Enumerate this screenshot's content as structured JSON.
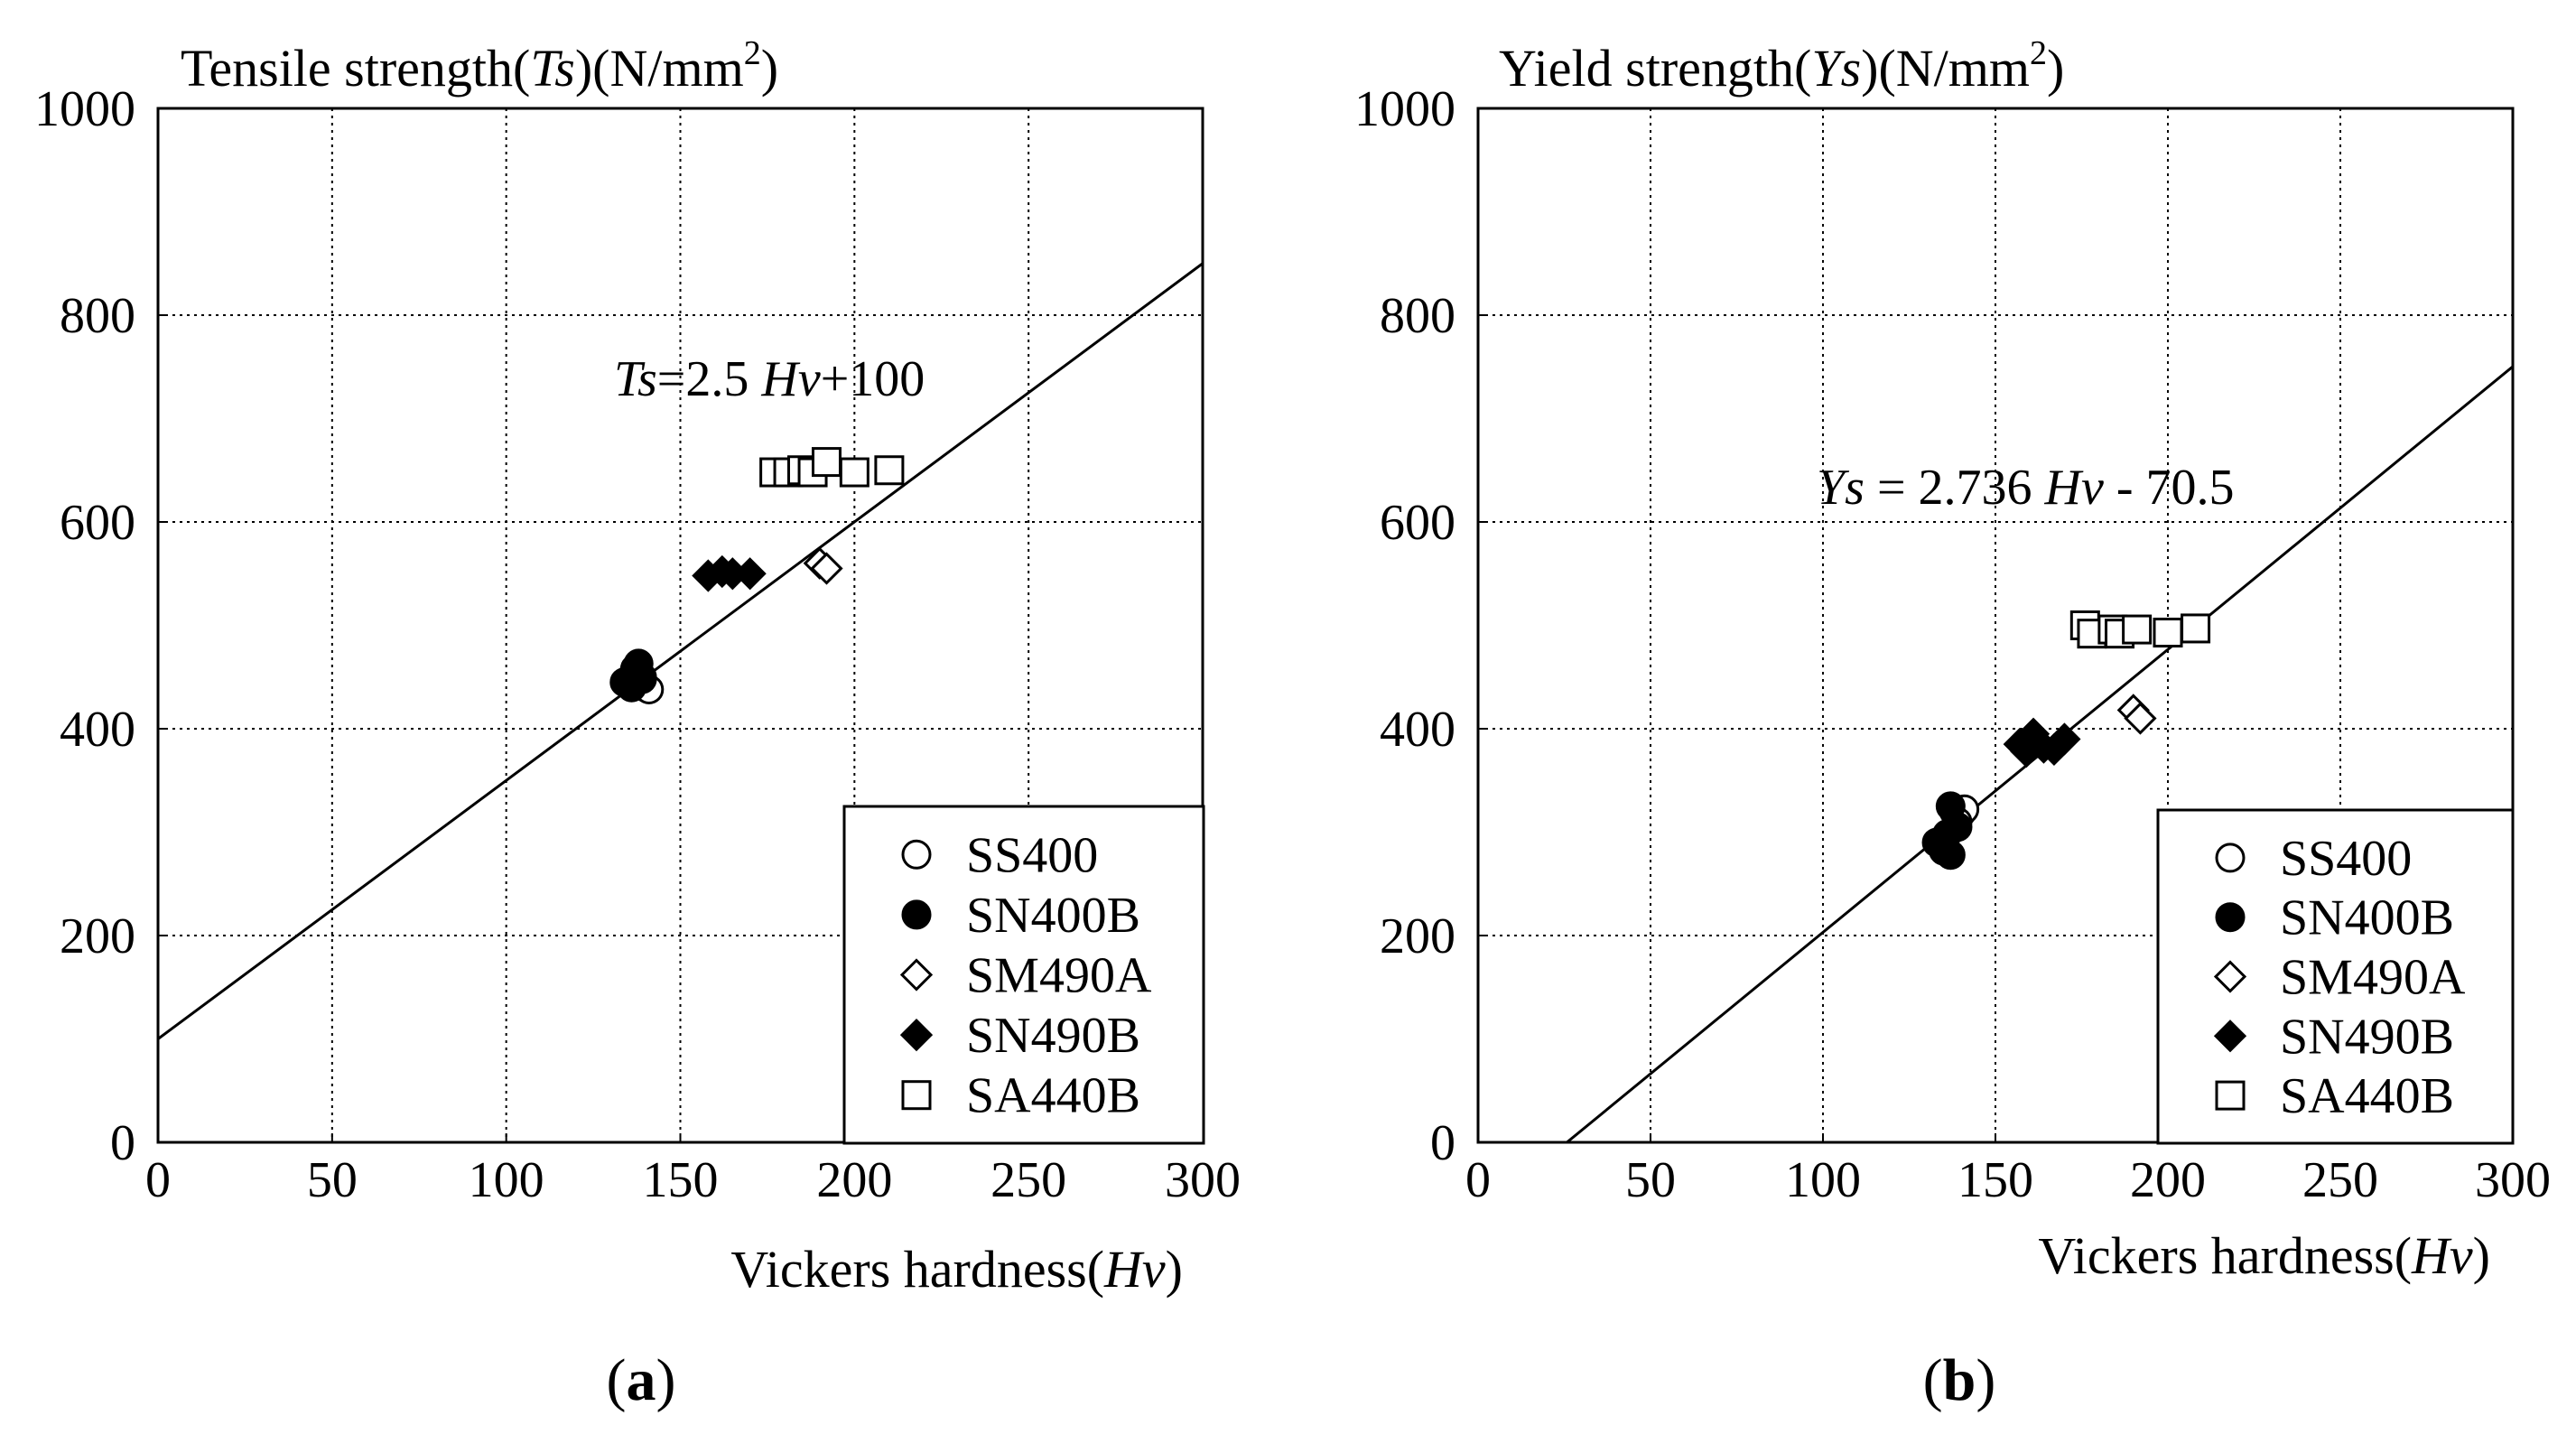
{
  "figure": {
    "panel_labels": [
      "(a)",
      "(b)"
    ]
  },
  "chart_data": [
    {
      "type": "scatter",
      "title": "Tensile strength(Ts)(N/mm2)",
      "title_parts": {
        "pre": "Tensile strength(",
        "var": "Ts",
        "post": ")(N/mm",
        "sup": "2",
        "end": ")"
      },
      "xlabel": "Vickers hardness(Hv)",
      "xlabel_parts": {
        "pre": "Vickers hardness(",
        "var": "Hv",
        "post": ")"
      },
      "ylabel": "",
      "xlim": [
        0,
        300
      ],
      "ylim": [
        0,
        1000
      ],
      "xticks": [
        0,
        50,
        100,
        150,
        200,
        250,
        300
      ],
      "yticks": [
        0,
        200,
        400,
        600,
        800,
        1000
      ],
      "ytick_labels": [
        "0",
        "200",
        "400",
        "600",
        "800",
        "1000"
      ],
      "grid": true,
      "legend_position": "bottom-right",
      "fit_line": {
        "slope": 2.5,
        "intercept": 100
      },
      "equation": "Ts=2.5 Hv+100",
      "equation_parts": [
        {
          "t": "Ts",
          "i": true
        },
        {
          "t": "=2.5 ",
          "i": false
        },
        {
          "t": "Hv",
          "i": true
        },
        {
          "t": "+100",
          "i": false
        }
      ],
      "series": [
        {
          "name": "SS400",
          "marker": "circle-open",
          "points": [
            [
              138,
              445
            ],
            [
              140,
              440
            ],
            [
              141,
              438
            ],
            [
              139,
              450
            ]
          ]
        },
        {
          "name": "SN400B",
          "marker": "circle-filled",
          "points": [
            [
              134,
              445
            ],
            [
              136,
              450
            ],
            [
              137,
              458
            ],
            [
              138,
              463
            ],
            [
              139,
              448
            ],
            [
              136,
              440
            ]
          ]
        },
        {
          "name": "SM490A",
          "marker": "diamond-open",
          "points": [
            [
              190,
              560
            ],
            [
              192,
              555
            ]
          ]
        },
        {
          "name": "SN490B",
          "marker": "diamond-filled",
          "points": [
            [
              158,
              548
            ],
            [
              162,
              552
            ],
            [
              165,
              550
            ],
            [
              170,
              550
            ]
          ]
        },
        {
          "name": "SA440B",
          "marker": "square-open",
          "points": [
            [
              177,
              648
            ],
            [
              181,
              648
            ],
            [
              185,
              650
            ],
            [
              188,
              648
            ],
            [
              192,
              658
            ],
            [
              200,
              648
            ],
            [
              210,
              650
            ]
          ]
        }
      ]
    },
    {
      "type": "scatter",
      "title": "Yield strength(Ys)(N/mm2)",
      "title_parts": {
        "pre": "Yield strength(",
        "var": "Ys",
        "post": ")(N/mm",
        "sup": "2",
        "end": ")"
      },
      "xlabel": "Vickers hardness(Hv)",
      "xlabel_parts": {
        "pre": "Vickers hardness(",
        "var": "Hv",
        "post": ")"
      },
      "ylabel": "",
      "xlim": [
        0,
        300
      ],
      "ylim": [
        0,
        1000
      ],
      "xticks": [
        0,
        50,
        100,
        150,
        200,
        250,
        300
      ],
      "yticks": [
        0,
        200,
        400,
        600,
        800,
        1000
      ],
      "ytick_labels": [
        "0",
        "200",
        "400",
        "600",
        "800",
        "1000"
      ],
      "grid": true,
      "legend_position": "bottom-right",
      "fit_line": {
        "slope": 2.736,
        "intercept": -70.5
      },
      "equation": "Ys = 2.736 Hv - 70.5",
      "equation_parts": [
        {
          "t": "Ys",
          "i": true
        },
        {
          "t": " = 2.736 ",
          "i": false
        },
        {
          "t": "Hv",
          "i": true
        },
        {
          "t": " - 70.5",
          "i": false
        }
      ],
      "series": [
        {
          "name": "SS400",
          "marker": "circle-open",
          "points": [
            [
              138,
              320
            ],
            [
              140,
              318
            ],
            [
              141,
              322
            ],
            [
              139,
              310
            ]
          ]
        },
        {
          "name": "SN400B",
          "marker": "circle-filled",
          "points": [
            [
              133,
              290
            ],
            [
              135,
              282
            ],
            [
              136,
              298
            ],
            [
              137,
              325
            ],
            [
              137,
              278
            ],
            [
              139,
              305
            ]
          ]
        },
        {
          "name": "SM490A",
          "marker": "diamond-open",
          "points": [
            [
              190,
              418
            ],
            [
              192,
              410
            ]
          ]
        },
        {
          "name": "SN490B",
          "marker": "diamond-filled",
          "points": [
            [
              157,
              385
            ],
            [
              159,
              378
            ],
            [
              161,
              395
            ],
            [
              164,
              382
            ],
            [
              167,
              380
            ],
            [
              170,
              390
            ]
          ]
        },
        {
          "name": "SA440B",
          "marker": "square-open",
          "points": [
            [
              176,
              500
            ],
            [
              178,
              492
            ],
            [
              184,
              496
            ],
            [
              186,
              492
            ],
            [
              191,
              496
            ],
            [
              200,
              493
            ],
            [
              208,
              497
            ]
          ]
        }
      ]
    }
  ]
}
